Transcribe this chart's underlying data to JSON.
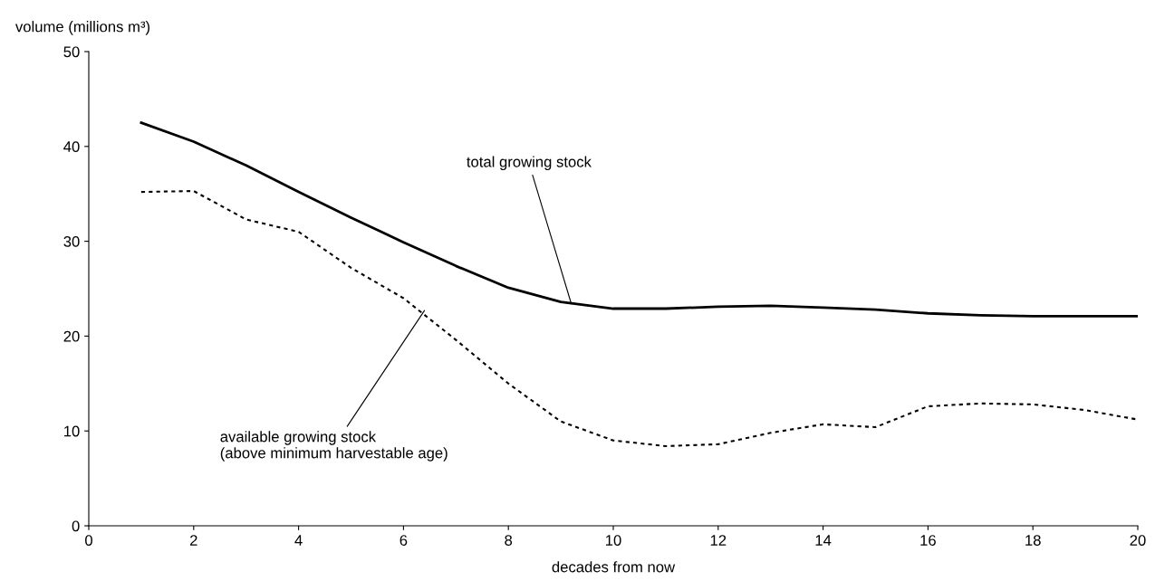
{
  "chart_data": {
    "type": "line",
    "xlabel": "decades from now",
    "ylabel": "volume (millions m³)",
    "x": [
      1,
      2,
      3,
      4,
      5,
      6,
      7,
      8,
      9,
      10,
      11,
      12,
      13,
      14,
      15,
      16,
      17,
      18,
      19,
      20
    ],
    "series": [
      {
        "color": "#000000",
        "line_style": "solid",
        "values": [
          42.5,
          40.5,
          38.0,
          35.2,
          32.5,
          29.9,
          27.4,
          25.1,
          23.6,
          22.9,
          22.9,
          23.1,
          23.2,
          23.0,
          22.8,
          22.4,
          22.2,
          22.1,
          22.1,
          22.1
        ]
      },
      {
        "color": "#000000",
        "line_style": "dotted",
        "values": [
          35.2,
          35.3,
          32.3,
          31.0,
          27.2,
          24.0,
          19.6,
          15.0,
          11.0,
          9.0,
          8.4,
          8.6,
          9.8,
          10.7,
          10.4,
          12.6,
          12.9,
          12.8,
          12.2,
          11.2
        ]
      }
    ],
    "annotations": [
      {
        "text": "total growing stock",
        "x": 9.2,
        "y": 23.4
      },
      {
        "text": "available growing stock\n(above minimum harvestable age)",
        "x": 6.4,
        "y": 22.7
      }
    ],
    "xlim": [
      0,
      20
    ],
    "xticks": [
      0,
      2,
      4,
      6,
      8,
      10,
      12,
      14,
      16,
      18,
      20
    ],
    "ylim": [
      0,
      50
    ],
    "yticks": [
      0,
      10,
      20,
      30,
      40,
      50
    ],
    "grid": false,
    "legend": false,
    "marker": "none"
  }
}
